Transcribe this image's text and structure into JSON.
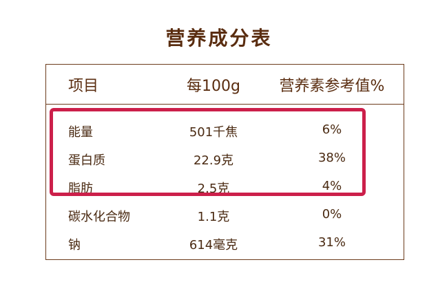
{
  "title": "营养成分表",
  "header": {
    "col1": "项目",
    "col2": "每100g",
    "col3": "营养素参考值%"
  },
  "rows": [
    {
      "item": "能量",
      "per100g": "501千焦",
      "nrv": "6%"
    },
    {
      "item": "蛋白质",
      "per100g": "22.9克",
      "nrv": "38%"
    },
    {
      "item": "脂肪",
      "per100g": "2.5克",
      "nrv": "4%"
    },
    {
      "item": "碳水化合物",
      "per100g": "1.1克",
      "nrv": "0%"
    },
    {
      "item": "钠",
      "per100g": "614毫克",
      "nrv": "31%"
    }
  ],
  "colors": {
    "text": "#4a2a12",
    "border": "#6a3a1a",
    "highlight": "#cc1f4a"
  }
}
